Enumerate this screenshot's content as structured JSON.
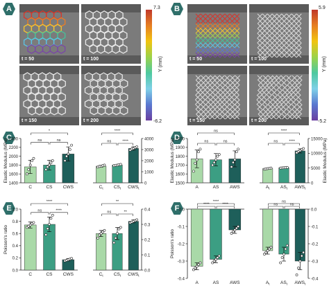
{
  "panels": {
    "A": {
      "label": "A",
      "photos": [
        "t = 50",
        "t = 100",
        "t = 150",
        "t = 200"
      ],
      "colorbar": {
        "max": "7.3",
        "min": "-6.2",
        "title": "Y (mm)"
      },
      "pattern": "hexagon"
    },
    "B": {
      "label": "B",
      "photos": [
        "t = 50",
        "t = 100",
        "t = 150",
        "t = 200"
      ],
      "colorbar": {
        "max": "5.9",
        "min": "-5.2",
        "title": "Y (mm)"
      },
      "pattern": "lattice"
    },
    "C": {
      "label": "C"
    },
    "D": {
      "label": "D"
    },
    "E": {
      "label": "E"
    },
    "F": {
      "label": "F"
    }
  },
  "colors": {
    "light": "#a9d9a8",
    "mid": "#3c9e83",
    "dark": "#1e5f5a",
    "badge": "#2f6f6a"
  },
  "chart_data": [
    {
      "id": "C-left",
      "type": "bar",
      "ylabel": "Elastic Modulus (MPa)",
      "ylim": [
        1400,
        2400
      ],
      "yticks": [
        1400,
        1600,
        1800,
        2000,
        2200,
        2400
      ],
      "categories": [
        "C",
        "CS",
        "CWS"
      ],
      "values": [
        1760,
        1800,
        2050
      ],
      "errors": [
        150,
        110,
        160
      ],
      "points": [
        [
          1600,
          1700,
          1800,
          1900,
          1950
        ],
        [
          1700,
          1760,
          1800,
          1850,
          1900
        ],
        [
          1900,
          2000,
          2050,
          2150,
          2250
        ]
      ],
      "sig": [
        {
          "from": 0,
          "to": 1,
          "label": "ns",
          "level": 1
        },
        {
          "from": 1,
          "to": 2,
          "label": "ns",
          "level": 1
        },
        {
          "from": 0,
          "to": 2,
          "label": "*",
          "level": 2
        }
      ]
    },
    {
      "id": "C-right",
      "type": "bar",
      "ylabel": "",
      "ylim": [
        0,
        4000
      ],
      "yticks": [
        0,
        1000,
        2000,
        3000,
        4000
      ],
      "axis": "right",
      "categories": [
        "C",
        "CS",
        "CWS"
      ],
      "subscripts": [
        "t",
        "t",
        "t"
      ],
      "values": [
        1500,
        1600,
        3100
      ],
      "errors": [
        80,
        60,
        150
      ],
      "points": [
        [
          1420,
          1480,
          1500,
          1550,
          1600
        ],
        [
          1550,
          1580,
          1600,
          1630,
          1660
        ],
        [
          2950,
          3050,
          3100,
          3180,
          3250
        ]
      ],
      "sig": [
        {
          "from": 0,
          "to": 1,
          "label": "ns",
          "level": 1
        },
        {
          "from": 1,
          "to": 2,
          "label": "****",
          "level": 1
        },
        {
          "from": 0,
          "to": 2,
          "label": "****",
          "level": 2
        }
      ]
    },
    {
      "id": "D-left",
      "type": "bar",
      "ylabel": "Elastic Modulus (MPa)",
      "ylim": [
        1500,
        2000
      ],
      "yticks": [
        1500,
        1600,
        1700,
        1800,
        1900,
        2000
      ],
      "categories": [
        "A",
        "AS",
        "AWS"
      ],
      "values": [
        1770,
        1760,
        1770
      ],
      "errors": [
        100,
        70,
        90
      ],
      "points": [
        [
          1630,
          1720,
          1760,
          1850,
          1880
        ],
        [
          1700,
          1730,
          1760,
          1800,
          1820
        ],
        [
          1680,
          1730,
          1760,
          1850,
          1880
        ]
      ],
      "sig": [
        {
          "from": 0,
          "to": 1,
          "label": "ns",
          "level": 1
        },
        {
          "from": 1,
          "to": 2,
          "label": "ns",
          "level": 1
        },
        {
          "from": 0,
          "to": 2,
          "label": "ns",
          "level": 2
        }
      ]
    },
    {
      "id": "D-right",
      "type": "bar",
      "ylabel": "Elastic Modulus (MPa)",
      "ylim": [
        0,
        15000
      ],
      "yticks": [
        0,
        5000,
        10000,
        15000
      ],
      "axis": "right",
      "categories": [
        "A",
        "AS",
        "AWS"
      ],
      "subscripts": [
        "t",
        "t",
        "t"
      ],
      "values": [
        4800,
        5100,
        10800
      ],
      "errors": [
        200,
        200,
        700
      ],
      "points": [
        [
          4600,
          4700,
          4800,
          4900,
          5000
        ],
        [
          5000,
          5050,
          5100,
          5150,
          5200
        ],
        [
          10200,
          10600,
          10900,
          11300,
          11600
        ]
      ],
      "sig": [
        {
          "from": 0,
          "to": 1,
          "label": "ns",
          "level": 1
        },
        {
          "from": 1,
          "to": 2,
          "label": "****",
          "level": 1
        },
        {
          "from": 0,
          "to": 2,
          "label": "****",
          "level": 2
        }
      ]
    },
    {
      "id": "E-left",
      "type": "bar",
      "ylabel": "Poisson's ratio",
      "ylim": [
        0,
        1.0
      ],
      "yticks": [
        0.0,
        0.2,
        0.4,
        0.6,
        0.8,
        1.0
      ],
      "categories": [
        "C",
        "CS",
        "CWS"
      ],
      "values": [
        0.74,
        0.75,
        0.17
      ],
      "errors": [
        0.05,
        0.12,
        0.02
      ],
      "points": [
        [
          0.7,
          0.72,
          0.74,
          0.76,
          0.78
        ],
        [
          0.58,
          0.68,
          0.75,
          0.85,
          0.9
        ],
        [
          0.15,
          0.16,
          0.17,
          0.18,
          0.19
        ]
      ],
      "sig": [
        {
          "from": 0,
          "to": 1,
          "label": "ns",
          "level": 1
        },
        {
          "from": 1,
          "to": 2,
          "label": "****",
          "level": 1
        },
        {
          "from": 0,
          "to": 2,
          "label": "****",
          "level": 2
        }
      ]
    },
    {
      "id": "E-right",
      "type": "bar",
      "ylabel": "",
      "ylim": [
        0,
        0.4
      ],
      "yticks": [
        0.0,
        0.1,
        0.2,
        0.3,
        0.4
      ],
      "axis": "right",
      "categories": [
        "C",
        "CS",
        "CWS"
      ],
      "subscripts": [
        "t",
        "t",
        "t"
      ],
      "values": [
        0.24,
        0.24,
        0.32
      ],
      "errors": [
        0.02,
        0.04,
        0.01
      ],
      "points": [
        [
          0.21,
          0.23,
          0.24,
          0.25,
          0.26
        ],
        [
          0.18,
          0.21,
          0.24,
          0.27,
          0.28
        ],
        [
          0.31,
          0.315,
          0.32,
          0.325,
          0.33
        ]
      ],
      "sig": [
        {
          "from": 0,
          "to": 1,
          "label": "ns",
          "level": 1
        },
        {
          "from": 1,
          "to": 2,
          "label": "**",
          "level": 1
        },
        {
          "from": 0,
          "to": 2,
          "label": "**",
          "level": 2
        }
      ]
    },
    {
      "id": "F-left",
      "type": "bar",
      "ylabel": "Poisson's ratio",
      "ylim": [
        -0.4,
        0.0
      ],
      "yticks": [
        -0.4,
        -0.3,
        -0.2,
        -0.1,
        0.0
      ],
      "categories": [
        "A",
        "AS",
        "AWS"
      ],
      "values": [
        -0.33,
        -0.29,
        -0.12
      ],
      "errors": [
        0.02,
        0.02,
        0.02
      ],
      "points": [
        [
          -0.35,
          -0.34,
          -0.33,
          -0.32,
          -0.31
        ],
        [
          -0.31,
          -0.3,
          -0.29,
          -0.28,
          -0.27
        ],
        [
          -0.14,
          -0.13,
          -0.12,
          -0.11,
          -0.1
        ]
      ],
      "sig": [
        {
          "from": 0,
          "to": 1,
          "label": "****",
          "level": 1
        },
        {
          "from": 1,
          "to": 2,
          "label": "****",
          "level": 1
        },
        {
          "from": 0,
          "to": 2,
          "label": "****",
          "level": 2
        }
      ]
    },
    {
      "id": "F-right",
      "type": "bar",
      "ylabel": "",
      "ylim": [
        -0.4,
        0.0
      ],
      "yticks": [
        -0.4,
        -0.3,
        -0.2,
        -0.1,
        0.0
      ],
      "axis": "right",
      "categories": [
        "A",
        "AS",
        "AWS"
      ],
      "subscripts": [
        "t",
        "t",
        "t"
      ],
      "values": [
        -0.24,
        -0.26,
        -0.3
      ],
      "errors": [
        0.02,
        0.04,
        0.05
      ],
      "points": [
        [
          -0.26,
          -0.25,
          -0.24,
          -0.23,
          -0.22
        ],
        [
          -0.31,
          -0.28,
          -0.26,
          -0.23,
          -0.21
        ],
        [
          -0.38,
          -0.34,
          -0.3,
          -0.27,
          -0.25
        ]
      ],
      "sig": [
        {
          "from": 0,
          "to": 1,
          "label": "ns",
          "level": 1
        },
        {
          "from": 1,
          "to": 2,
          "label": "ns",
          "level": 1
        },
        {
          "from": 0,
          "to": 2,
          "label": "ns",
          "level": 2
        }
      ]
    }
  ]
}
